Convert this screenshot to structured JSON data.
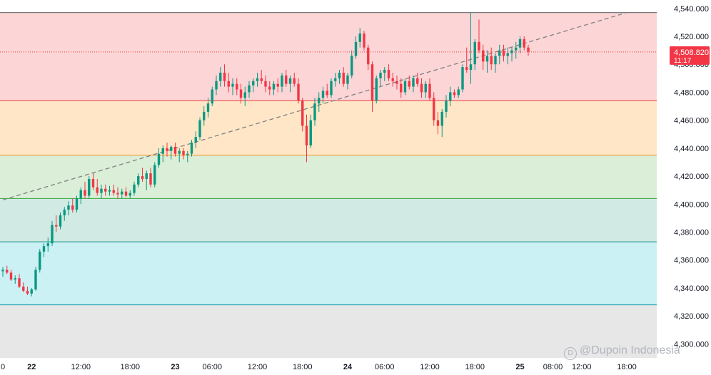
{
  "chart_data": {
    "type": "candlestick",
    "y_axis": {
      "min": 4290,
      "max": 4546,
      "ticks": [
        "4,300.000",
        "4,320.000",
        "4,340.000",
        "4,360.000",
        "4,380.000",
        "4,400.000",
        "4,420.000",
        "4,440.000",
        "4,460.000",
        "4,480.000",
        "4,500.000",
        "4,520.000",
        "4,540.000"
      ],
      "tick_values": [
        4300,
        4320,
        4340,
        4360,
        4380,
        4400,
        4420,
        4440,
        4460,
        4480,
        4500,
        4520,
        4540
      ]
    },
    "x_axis": {
      "ticks": [
        {
          "label": "0",
          "i": 0,
          "bold": false
        },
        {
          "label": "22",
          "i": 7,
          "bold": true
        },
        {
          "label": "12:00",
          "i": 19,
          "bold": false
        },
        {
          "label": "18:00",
          "i": 31,
          "bold": false
        },
        {
          "label": "23",
          "i": 42,
          "bold": true
        },
        {
          "label": "06:00",
          "i": 51,
          "bold": false
        },
        {
          "label": "12:00",
          "i": 62,
          "bold": false
        },
        {
          "label": "18:00",
          "i": 73,
          "bold": false
        },
        {
          "label": "24",
          "i": 84,
          "bold": true
        },
        {
          "label": "06:00",
          "i": 93,
          "bold": false
        },
        {
          "label": "12:00",
          "i": 104,
          "bold": false
        },
        {
          "label": "18:00",
          "i": 115,
          "bold": false
        },
        {
          "label": "25",
          "i": 126,
          "bold": true
        },
        {
          "label": "08:00",
          "i": 134,
          "bold": false
        },
        {
          "label": "12:00",
          "i": 141,
          "bold": false
        },
        {
          "label": "18:00",
          "i": 152,
          "bold": false
        }
      ]
    },
    "zones": [
      {
        "from": 4474,
        "to": 4537,
        "color": "#fcd5d6"
      },
      {
        "from": 4435,
        "to": 4474,
        "color": "#ffe6c7"
      },
      {
        "from": 4404,
        "to": 4435,
        "color": "#dbeed8"
      },
      {
        "from": 4373,
        "to": 4404,
        "color": "#d1eae3"
      },
      {
        "from": 4328,
        "to": 4373,
        "color": "#cbf1f5"
      },
      {
        "from": 4290,
        "to": 4328,
        "color": "#e7e7e7"
      }
    ],
    "levels": [
      {
        "value": 4537,
        "color": "#7b7b7b"
      },
      {
        "value": 4474,
        "color": "#e84d52"
      },
      {
        "value": 4435,
        "color": "#f29b38"
      },
      {
        "value": 4404,
        "color": "#4caf50"
      },
      {
        "value": 4373,
        "color": "#2a9d8f"
      },
      {
        "value": 4328,
        "color": "#26a3b5"
      }
    ],
    "trendline": {
      "from": {
        "i": 0,
        "price": 4403
      },
      "to": {
        "i": 152,
        "price": 4537
      },
      "color": "#808080"
    },
    "current_price": {
      "label": "4,508.820",
      "countdown": "11:17",
      "value": 4508.82,
      "color": "#f23645"
    },
    "colors": {
      "up": "#089981",
      "down": "#f23645"
    },
    "candles": [
      [
        4352,
        4355,
        4348,
        4353
      ],
      [
        4353,
        4356,
        4350,
        4351
      ],
      [
        4351,
        4353,
        4345,
        4346
      ],
      [
        4346,
        4349,
        4343,
        4347
      ],
      [
        4347,
        4350,
        4340,
        4341
      ],
      [
        4341,
        4344,
        4337,
        4338
      ],
      [
        4338,
        4341,
        4335,
        4336
      ],
      [
        4336,
        4340,
        4334,
        4339
      ],
      [
        4339,
        4355,
        4338,
        4353
      ],
      [
        4353,
        4368,
        4351,
        4366
      ],
      [
        4366,
        4372,
        4362,
        4370
      ],
      [
        4370,
        4376,
        4366,
        4372
      ],
      [
        4372,
        4388,
        4370,
        4385
      ],
      [
        4385,
        4392,
        4380,
        4384
      ],
      [
        4384,
        4394,
        4382,
        4392
      ],
      [
        4392,
        4398,
        4388,
        4396
      ],
      [
        4396,
        4402,
        4392,
        4399
      ],
      [
        4399,
        4404,
        4394,
        4396
      ],
      [
        4396,
        4406,
        4394,
        4404
      ],
      [
        4404,
        4412,
        4400,
        4410
      ],
      [
        4410,
        4416,
        4404,
        4406
      ],
      [
        4406,
        4420,
        4404,
        4418
      ],
      [
        4418,
        4422,
        4410,
        4412
      ],
      [
        4412,
        4418,
        4406,
        4408
      ],
      [
        4408,
        4414,
        4404,
        4411
      ],
      [
        4411,
        4414,
        4406,
        4409
      ],
      [
        4409,
        4413,
        4406,
        4410
      ],
      [
        4410,
        4414,
        4406,
        4408
      ],
      [
        4408,
        4412,
        4404,
        4407
      ],
      [
        4407,
        4411,
        4404,
        4409
      ],
      [
        4409,
        4412,
        4405,
        4406
      ],
      [
        4406,
        4410,
        4404,
        4408
      ],
      [
        4408,
        4416,
        4406,
        4414
      ],
      [
        4414,
        4422,
        4412,
        4420
      ],
      [
        4420,
        4426,
        4416,
        4418
      ],
      [
        4418,
        4424,
        4410,
        4422
      ],
      [
        4422,
        4426,
        4412,
        4414
      ],
      [
        4414,
        4430,
        4412,
        4428
      ],
      [
        4428,
        4440,
        4426,
        4436
      ],
      [
        4436,
        4442,
        4430,
        4440
      ],
      [
        4440,
        4444,
        4434,
        4438
      ],
      [
        4438,
        4442,
        4432,
        4441
      ],
      [
        4441,
        4444,
        4434,
        4436
      ],
      [
        4436,
        4440,
        4430,
        4438
      ],
      [
        4438,
        4440,
        4432,
        4435
      ],
      [
        4435,
        4438,
        4430,
        4436
      ],
      [
        4436,
        4446,
        4434,
        4444
      ],
      [
        4444,
        4452,
        4440,
        4448
      ],
      [
        4448,
        4462,
        4446,
        4460
      ],
      [
        4460,
        4470,
        4456,
        4466
      ],
      [
        4466,
        4476,
        4462,
        4472
      ],
      [
        4472,
        4484,
        4470,
        4482
      ],
      [
        4482,
        4492,
        4478,
        4488
      ],
      [
        4488,
        4498,
        4484,
        4494
      ],
      [
        4494,
        4500,
        4484,
        4488
      ],
      [
        4488,
        4494,
        4480,
        4484
      ],
      [
        4484,
        4490,
        4478,
        4486
      ],
      [
        4486,
        4490,
        4478,
        4482
      ],
      [
        4482,
        4486,
        4472,
        4476
      ],
      [
        4476,
        4484,
        4470,
        4480
      ],
      [
        4480,
        4488,
        4476,
        4485
      ],
      [
        4485,
        4490,
        4480,
        4488
      ],
      [
        4488,
        4494,
        4484,
        4490
      ],
      [
        4490,
        4496,
        4486,
        4488
      ],
      [
        4488,
        4492,
        4480,
        4484
      ],
      [
        4484,
        4488,
        4478,
        4482
      ],
      [
        4482,
        4488,
        4478,
        4486
      ],
      [
        4486,
        4490,
        4480,
        4484
      ],
      [
        4484,
        4494,
        4480,
        4492
      ],
      [
        4492,
        4496,
        4484,
        4486
      ],
      [
        4486,
        4492,
        4480,
        4490
      ],
      [
        4490,
        4494,
        4484,
        4486
      ],
      [
        4486,
        4490,
        4472,
        4474
      ],
      [
        4474,
        4476,
        4452,
        4456
      ],
      [
        4456,
        4464,
        4430,
        4442
      ],
      [
        4442,
        4464,
        4440,
        4460
      ],
      [
        4460,
        4476,
        4456,
        4472
      ],
      [
        4472,
        4480,
        4466,
        4476
      ],
      [
        4476,
        4484,
        4472,
        4481
      ],
      [
        4481,
        4486,
        4476,
        4478
      ],
      [
        4478,
        4490,
        4476,
        4488
      ],
      [
        4488,
        4494,
        4484,
        4490
      ],
      [
        4490,
        4496,
        4486,
        4494
      ],
      [
        4494,
        4498,
        4484,
        4486
      ],
      [
        4486,
        4494,
        4482,
        4492
      ],
      [
        4492,
        4510,
        4490,
        4506
      ],
      [
        4506,
        4520,
        4504,
        4516
      ],
      [
        4516,
        4526,
        4512,
        4522
      ],
      [
        4522,
        4524,
        4510,
        4512
      ],
      [
        4512,
        4514,
        4496,
        4500
      ],
      [
        4500,
        4502,
        4466,
        4474
      ],
      [
        4474,
        4492,
        4472,
        4490
      ],
      [
        4490,
        4496,
        4484,
        4494
      ],
      [
        4494,
        4498,
        4488,
        4496
      ],
      [
        4496,
        4500,
        4488,
        4490
      ],
      [
        4490,
        4494,
        4484,
        4488
      ],
      [
        4488,
        4492,
        4482,
        4486
      ],
      [
        4486,
        4490,
        4476,
        4480
      ],
      [
        4480,
        4490,
        4478,
        4488
      ],
      [
        4488,
        4492,
        4482,
        4484
      ],
      [
        4484,
        4492,
        4480,
        4490
      ],
      [
        4490,
        4494,
        4484,
        4486
      ],
      [
        4486,
        4490,
        4476,
        4480
      ],
      [
        4480,
        4488,
        4476,
        4486
      ],
      [
        4486,
        4490,
        4474,
        4476
      ],
      [
        4476,
        4480,
        4456,
        4460
      ],
      [
        4460,
        4466,
        4450,
        4456
      ],
      [
        4456,
        4468,
        4448,
        4466
      ],
      [
        4466,
        4478,
        4462,
        4474
      ],
      [
        4474,
        4484,
        4470,
        4480
      ],
      [
        4480,
        4482,
        4476,
        4478
      ],
      [
        4478,
        4484,
        4476,
        4482
      ],
      [
        4482,
        4500,
        4480,
        4498
      ],
      [
        4498,
        4512,
        4494,
        4496
      ],
      [
        4496,
        4537,
        4486,
        4500
      ],
      [
        4500,
        4518,
        4496,
        4516
      ],
      [
        4516,
        4532,
        4508,
        4510
      ],
      [
        4510,
        4514,
        4496,
        4502
      ],
      [
        4502,
        4510,
        4494,
        4506
      ],
      [
        4506,
        4512,
        4496,
        4500
      ],
      [
        4500,
        4508,
        4494,
        4506
      ],
      [
        4506,
        4514,
        4500,
        4510
      ],
      [
        4510,
        4514,
        4502,
        4506
      ],
      [
        4506,
        4512,
        4500,
        4508
      ],
      [
        4508,
        4512,
        4502,
        4510
      ],
      [
        4510,
        4516,
        4504,
        4512
      ],
      [
        4512,
        4520,
        4508,
        4518
      ],
      [
        4518,
        4520,
        4510,
        4512
      ],
      [
        4512,
        4514,
        4506,
        4509
      ]
    ]
  },
  "watermark": {
    "text": "@Dupoin Indonesia",
    "icon": "dupoin-logo-icon"
  }
}
